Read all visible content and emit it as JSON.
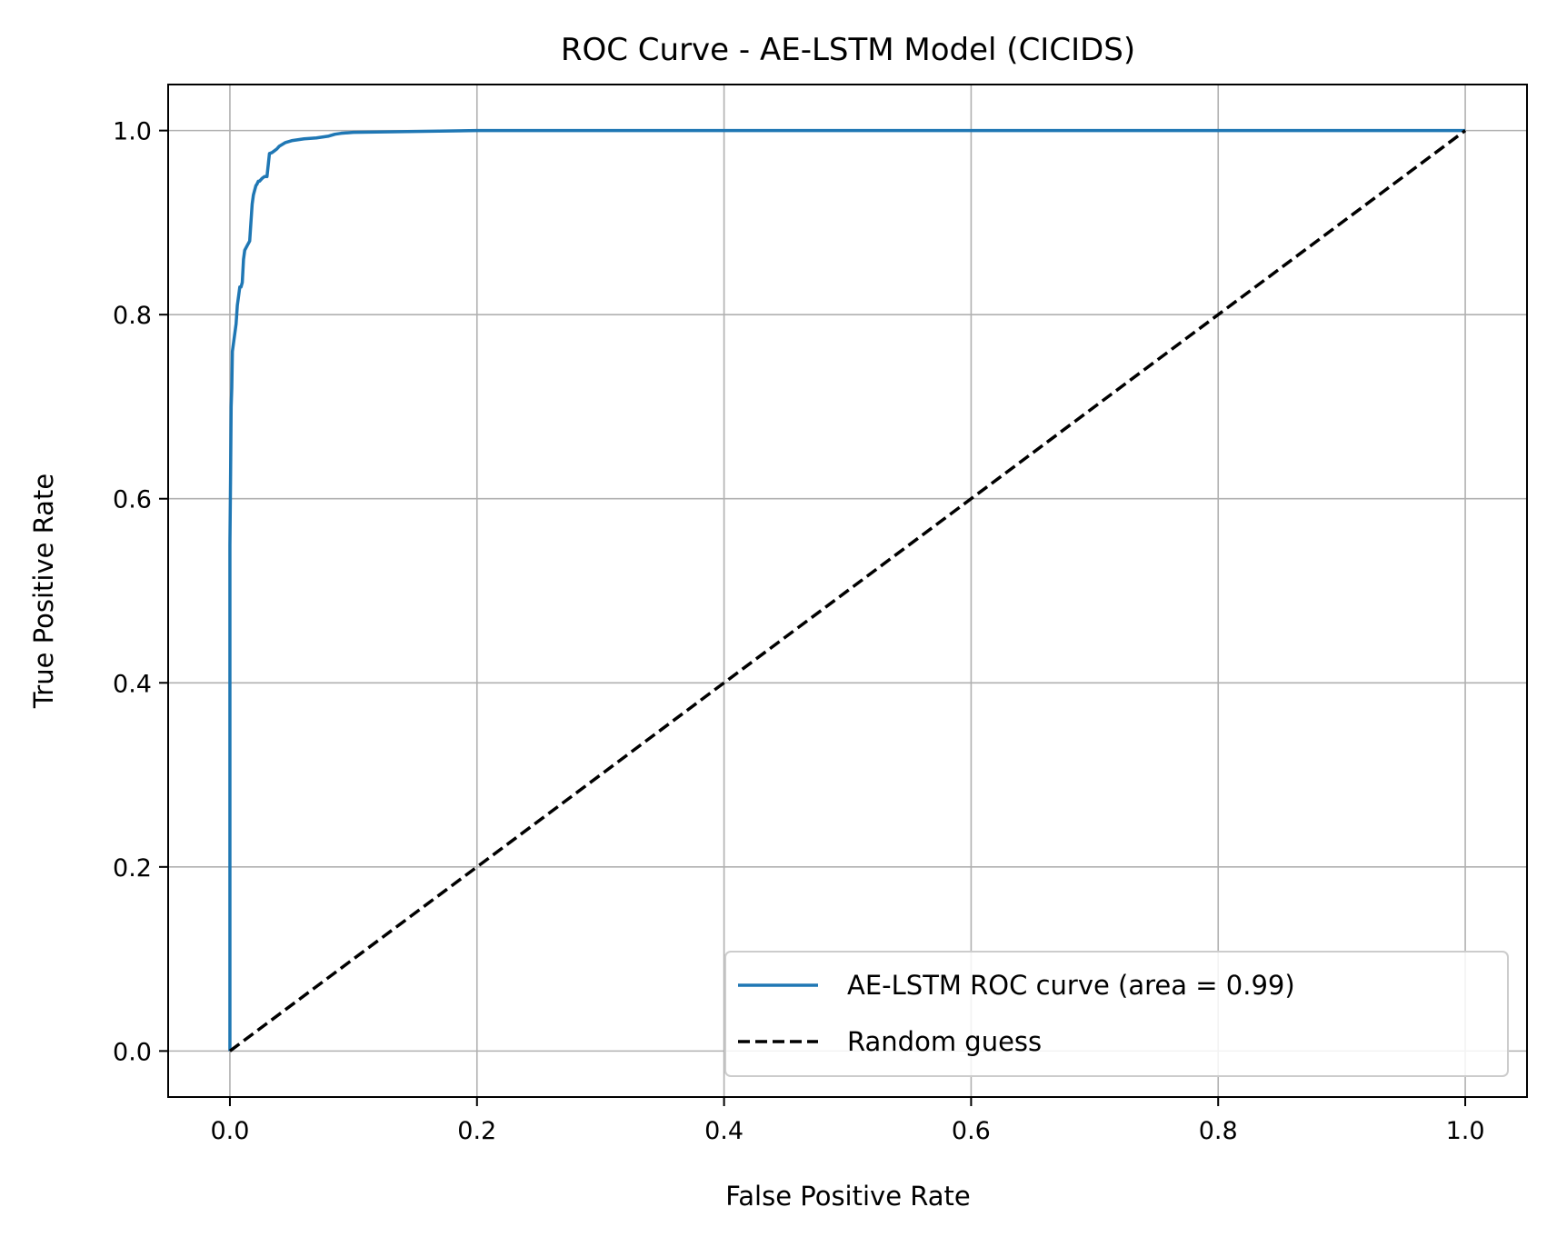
{
  "chart_data": {
    "type": "line",
    "title": "ROC Curve - AE-LSTM Model (CICIDS)",
    "xlabel": "False Positive Rate",
    "ylabel": "True Positive Rate",
    "xlim": [
      -0.05,
      1.05
    ],
    "ylim": [
      -0.05,
      1.05
    ],
    "xticks": [
      0.0,
      0.2,
      0.4,
      0.6,
      0.8,
      1.0
    ],
    "xtick_labels": [
      "0.0",
      "0.2",
      "0.4",
      "0.6",
      "0.8",
      "1.0"
    ],
    "yticks": [
      0.0,
      0.2,
      0.4,
      0.6,
      0.8,
      1.0
    ],
    "ytick_labels": [
      "0.0",
      "0.2",
      "0.4",
      "0.6",
      "0.8",
      "1.0"
    ],
    "grid": true,
    "legend_position": "lower-right",
    "series": [
      {
        "name": "AE-LSTM ROC curve (area = 0.99)",
        "color": "#1f77b4",
        "style": "solid",
        "x": [
          0.0,
          0.0,
          0.0005,
          0.001,
          0.0015,
          0.002,
          0.003,
          0.004,
          0.005,
          0.006,
          0.007,
          0.008,
          0.009,
          0.01,
          0.011,
          0.012,
          0.014,
          0.016,
          0.017,
          0.018,
          0.019,
          0.02,
          0.021,
          0.022,
          0.023,
          0.024,
          0.026,
          0.028,
          0.03,
          0.032,
          0.034,
          0.035,
          0.036,
          0.038,
          0.04,
          0.045,
          0.05,
          0.055,
          0.06,
          0.07,
          0.08,
          0.085,
          0.09,
          0.1,
          0.15,
          0.2,
          0.3,
          1.0
        ],
        "y": [
          0.0,
          0.55,
          0.62,
          0.7,
          0.72,
          0.76,
          0.77,
          0.78,
          0.79,
          0.81,
          0.82,
          0.83,
          0.83,
          0.835,
          0.86,
          0.87,
          0.875,
          0.88,
          0.9,
          0.92,
          0.93,
          0.935,
          0.94,
          0.942,
          0.945,
          0.945,
          0.948,
          0.95,
          0.95,
          0.975,
          0.976,
          0.977,
          0.978,
          0.98,
          0.983,
          0.987,
          0.989,
          0.99,
          0.991,
          0.992,
          0.994,
          0.996,
          0.997,
          0.998,
          0.999,
          1.0,
          1.0,
          1.0
        ]
      },
      {
        "name": "Random guess",
        "color": "#000000",
        "style": "dashed",
        "x": [
          0.0,
          1.0
        ],
        "y": [
          0.0,
          1.0
        ]
      }
    ]
  }
}
